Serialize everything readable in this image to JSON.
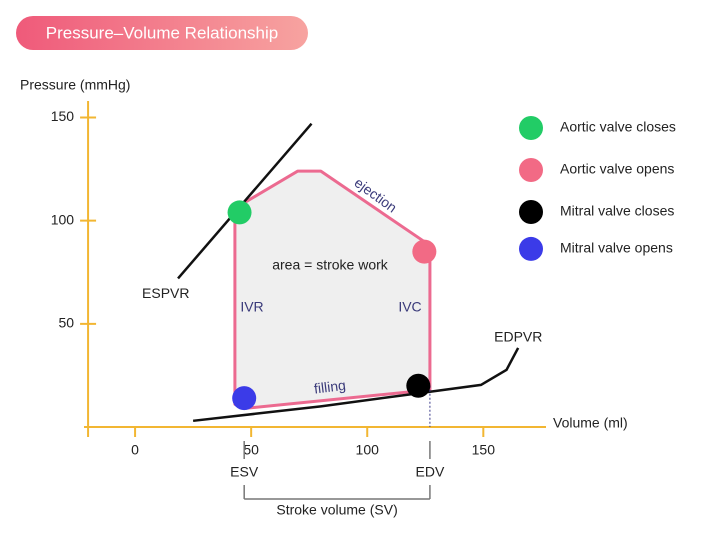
{
  "chart_data": {
    "type": "pv-loop",
    "title": "Pressure–Volume Relationship",
    "y_label": "Pressure (mmHg)",
    "x_label": "Volume (ml)",
    "xlim": [
      -22,
      177
    ],
    "ylim": [
      0,
      158
    ],
    "xticks": [
      0,
      50,
      100,
      150
    ],
    "yticks": [
      50,
      100,
      150
    ],
    "loop": {
      "color": "#ec6a90",
      "fill": "#efefef",
      "x": [
        43,
        43,
        70,
        80,
        127,
        127,
        47
      ],
      "y": [
        11,
        106,
        124,
        124,
        88,
        18,
        9
      ]
    },
    "espvr": {
      "name": "ESPVR",
      "color": "#111111",
      "x": [
        18.5,
        76
      ],
      "y": [
        72,
        147
      ]
    },
    "edpvr": {
      "name": "EDPVR",
      "color": "#111111",
      "x": [
        25,
        80,
        123,
        149,
        160,
        165
      ],
      "y": [
        3,
        10,
        16.5,
        20.4,
        27.7,
        38.3
      ]
    },
    "series": [
      {
        "name": "Aortic valve closes",
        "color": "#22cc66",
        "x": [
          45
        ],
        "values": [
          104
        ]
      },
      {
        "name": "Aortic valve opens",
        "color": "#f26a85",
        "x": [
          124.6
        ],
        "values": [
          85
        ]
      },
      {
        "name": "Mitral valve closes",
        "color": "#000000",
        "x": [
          122
        ],
        "values": [
          20
        ]
      },
      {
        "name": "Mitral valve opens",
        "color": "#3b3be8",
        "x": [
          47
        ],
        "values": [
          14
        ]
      }
    ],
    "annotations": [
      "ejection",
      "filling",
      "IVR",
      "IVC",
      "area = stroke work"
    ],
    "esv": {
      "label": "ESV",
      "x": 47
    },
    "edv": {
      "label": "EDV",
      "x": 127
    },
    "stroke_volume": "Stroke volume (SV)"
  }
}
